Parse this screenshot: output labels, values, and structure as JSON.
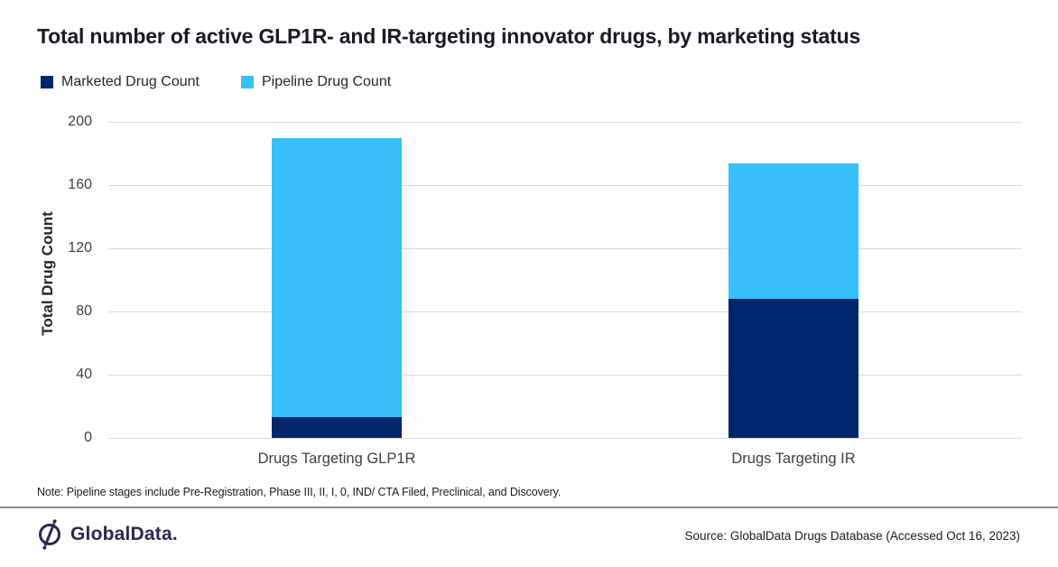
{
  "title": "Total number of active GLP1R- and IR-targeting innovator drugs, by marketing status",
  "legend": [
    {
      "label": "Marketed Drug Count",
      "color": "#00266b"
    },
    {
      "label": "Pipeline Drug Count",
      "color": "#38bef8"
    }
  ],
  "chart_data": {
    "type": "bar",
    "stacked": true,
    "categories": [
      "Drugs Targeting GLP1R",
      "Drugs Targeting IR"
    ],
    "series": [
      {
        "name": "Marketed Drug Count",
        "color": "#00266b",
        "values": [
          13,
          88
        ]
      },
      {
        "name": "Pipeline Drug Count",
        "color": "#38bef8",
        "values": [
          177,
          86
        ]
      }
    ],
    "totals": [
      190,
      174
    ],
    "title": "Total number of active GLP1R- and IR-targeting innovator drugs, by marketing status",
    "xlabel": "",
    "ylabel": "Total Drug Count",
    "ylim": [
      0,
      200
    ],
    "yticks": [
      0,
      40,
      80,
      120,
      160,
      200
    ],
    "grid": true,
    "legend_position": "top-left"
  },
  "note": "Note: Pipeline stages include Pre-Registration, Phase III, II, I, 0, IND/ CTA Filed, Preclinical, and Discovery.",
  "footer": {
    "logo_text": "GlobalData.",
    "source": "Source: GlobalData Drugs Database (Accessed Oct 16, 2023)"
  },
  "colors": {
    "marketed_navy": "#00266b",
    "pipeline_sky": "#38bef8",
    "gridline_gray": "#d9d9d9",
    "brand_purple": "#2d2650",
    "divider_gray": "#8c8c8c"
  }
}
